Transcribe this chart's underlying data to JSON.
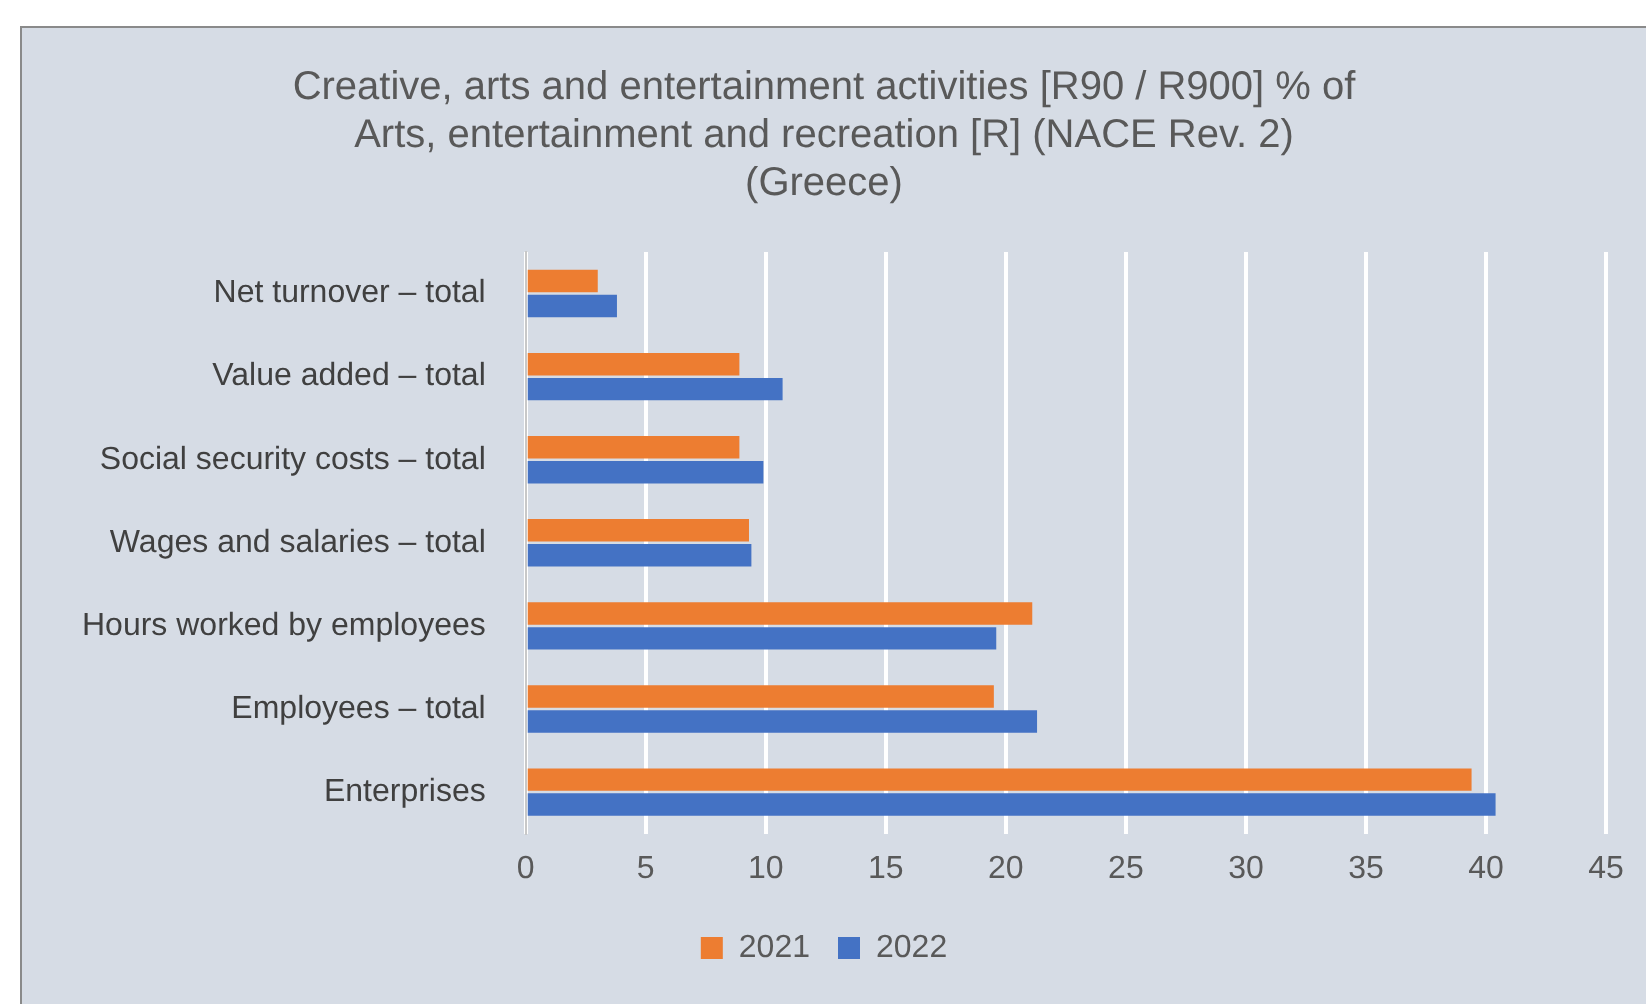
{
  "chart_data": {
    "type": "bar",
    "orientation": "horizontal",
    "title": [
      "Creative, arts and entertainment activities [R90 / R900] % of",
      "Arts, entertainment and recreation [R] (NACE Rev. 2)",
      "(Greece)"
    ],
    "categories": [
      "Net turnover – total",
      "Value added – total",
      "Social security costs – total",
      "Wages and salaries – total",
      "Hours worked by employees",
      "Employees – total",
      "Enterprises"
    ],
    "series": [
      {
        "name": "2021",
        "color": "#ed7d31",
        "values": [
          3.0,
          8.9,
          8.9,
          9.3,
          21.1,
          19.5,
          39.4
        ]
      },
      {
        "name": "2022",
        "color": "#4472c4",
        "values": [
          3.8,
          10.7,
          9.9,
          9.4,
          19.6,
          21.3,
          40.4
        ]
      }
    ],
    "xlim": [
      0,
      45
    ],
    "xticks": [
      0,
      5,
      10,
      15,
      20,
      25,
      30,
      35,
      40,
      45
    ],
    "grid": "x",
    "legend": "bottom"
  }
}
